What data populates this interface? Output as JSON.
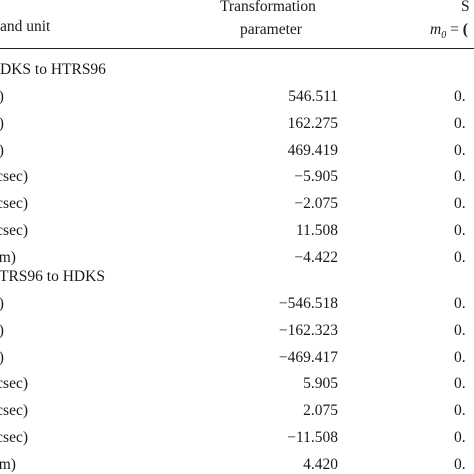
{
  "header": {
    "col_label": "and unit",
    "col_param_line1": "Transformation",
    "col_param_line2": "parameter",
    "col_sd_line1": "S",
    "col_sd_line2": "m",
    "col_sd_sub": "0",
    "col_sd_eq": " = "
  },
  "sections": [
    {
      "title": "DKS to HTRS96",
      "rows": [
        {
          "label": "n)",
          "value": "546.511",
          "sd": "0."
        },
        {
          "label": "n)",
          "value": "162.275",
          "sd": "0."
        },
        {
          "label": "n)",
          "value": "469.419",
          "sd": "0."
        },
        {
          "label": "rcsec)",
          "value": "−5.905",
          "sd": "0."
        },
        {
          "label": "rcsec)",
          "value": "−2.075",
          "sd": "0."
        },
        {
          "label": "rcsec)",
          "value": "11.508",
          "sd": "0."
        },
        {
          "label": "pm)",
          "value": "−4.422",
          "sd": "0."
        }
      ]
    },
    {
      "title": "TRS96 to HDKS",
      "rows": [
        {
          "label": "n)",
          "value": "−546.518",
          "sd": "0."
        },
        {
          "label": "n)",
          "value": "−162.323",
          "sd": "0."
        },
        {
          "label": "n)",
          "value": "−469.417",
          "sd": "0."
        },
        {
          "label": "rcsec)",
          "value": "5.905",
          "sd": "0."
        },
        {
          "label": "rcsec)",
          "value": "2.075",
          "sd": "0."
        },
        {
          "label": "rcsec)",
          "value": "−11.508",
          "sd": "0."
        },
        {
          "label": "pm)",
          "value": "4.420",
          "sd": "0."
        }
      ]
    }
  ]
}
